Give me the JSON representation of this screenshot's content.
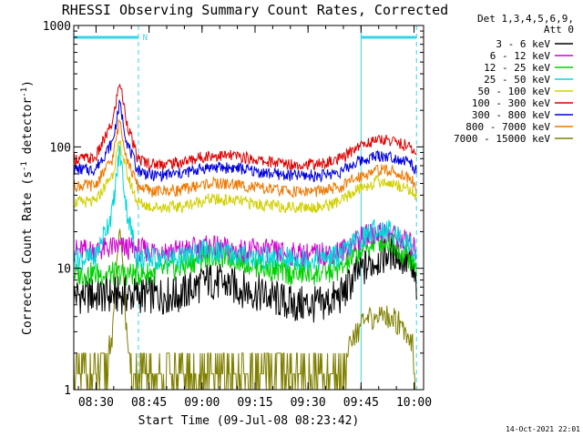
{
  "chart_data": {
    "type": "line",
    "title": "RHESSI Observing Summary Count Rates, Corrected",
    "xlabel": "Start Time (09-Jul-08 08:23:42)",
    "ylabel_main": "Corrected Count Rate (s",
    "ylabel_sup1": "-1",
    "ylabel_mid": " detector",
    "ylabel_sup2": "-1",
    "ylabel_end": ")",
    "yscale": "log",
    "ylim": [
      1,
      1000
    ],
    "x_unit": "minutes after 08:23:42",
    "xlim": [
      0,
      99
    ],
    "x_ticks": [
      {
        "value": 6.3,
        "label": "08:30"
      },
      {
        "value": 21.3,
        "label": "08:45"
      },
      {
        "value": 36.3,
        "label": "09:00"
      },
      {
        "value": 51.3,
        "label": "09:15"
      },
      {
        "value": 66.3,
        "label": "09:30"
      },
      {
        "value": 81.3,
        "label": "09:45"
      },
      {
        "value": 96.3,
        "label": "10:00"
      }
    ],
    "y_ticks": [
      {
        "value": 1,
        "label": "1"
      },
      {
        "value": 10,
        "label": "10"
      },
      {
        "value": 100,
        "label": "100"
      },
      {
        "value": 1000,
        "label": "1000"
      }
    ],
    "legend_header": [
      "Det 1,3,4,5,6,9,",
      "Att 0"
    ],
    "legend_position": "right",
    "night_lines": [
      0,
      18.3,
      81.3,
      97
    ],
    "night_bars": [
      {
        "from": 0,
        "to": 18.3
      },
      {
        "from": 81.3,
        "to": 97
      }
    ],
    "night_marker": {
      "label": "N",
      "x": 19.5
    },
    "series": [
      {
        "name": "3 - 6 keV",
        "color": "#000000",
        "x": [
          0,
          6,
          12,
          20,
          30,
          38,
          46,
          54,
          62,
          70,
          76,
          80,
          86,
          90,
          95,
          97
        ],
        "values": [
          6,
          6,
          6,
          6,
          6,
          8,
          7,
          6,
          5,
          5,
          6,
          9,
          12,
          14,
          11,
          7
        ]
      },
      {
        "name": "6 - 12 keV",
        "color": "#d000d0",
        "x": [
          0,
          6,
          12,
          20,
          30,
          38,
          46,
          54,
          62,
          70,
          76,
          80,
          86,
          90,
          95,
          97
        ],
        "values": [
          14,
          14,
          15,
          14,
          14,
          15,
          14,
          14,
          13,
          13,
          14,
          17,
          20,
          19,
          16,
          14
        ]
      },
      {
        "name": "12 - 25 keV",
        "color": "#00d000",
        "x": [
          0,
          6,
          12,
          20,
          30,
          38,
          46,
          54,
          62,
          70,
          76,
          80,
          86,
          90,
          95,
          97
        ],
        "values": [
          9,
          9,
          9,
          9,
          10,
          13,
          12,
          10,
          9,
          9,
          10,
          13,
          17,
          16,
          12,
          10
        ]
      },
      {
        "name": "25 - 50 keV",
        "color": "#00d8d8",
        "x": [
          0,
          6,
          11,
          13,
          15,
          18,
          22,
          30,
          38,
          46,
          54,
          62,
          70,
          76,
          80,
          86,
          90,
          95,
          97
        ],
        "values": [
          12,
          12,
          30,
          95,
          30,
          12,
          12,
          12,
          14,
          13,
          12,
          12,
          12,
          13,
          17,
          21,
          20,
          16,
          13
        ]
      },
      {
        "name": "50 - 100 keV",
        "color": "#d0d000",
        "x": [
          0,
          6,
          11,
          13,
          15,
          18,
          22,
          30,
          38,
          46,
          54,
          62,
          70,
          76,
          80,
          86,
          90,
          95,
          97
        ],
        "values": [
          35,
          35,
          60,
          110,
          60,
          35,
          32,
          32,
          37,
          36,
          33,
          32,
          32,
          36,
          44,
          52,
          50,
          45,
          38
        ]
      },
      {
        "name": "100 - 300 keV",
        "color": "#e00000",
        "x": [
          0,
          6,
          11,
          13,
          15,
          18,
          22,
          30,
          38,
          46,
          54,
          62,
          70,
          76,
          80,
          86,
          90,
          95,
          97
        ],
        "values": [
          80,
          80,
          160,
          350,
          160,
          80,
          72,
          74,
          85,
          84,
          76,
          72,
          72,
          80,
          100,
          115,
          113,
          100,
          85
        ]
      },
      {
        "name": "300 - 800 keV",
        "color": "#0000e0",
        "x": [
          0,
          6,
          11,
          13,
          15,
          18,
          22,
          30,
          38,
          46,
          54,
          62,
          70,
          76,
          80,
          86,
          90,
          95,
          97
        ],
        "values": [
          65,
          65,
          110,
          230,
          110,
          65,
          58,
          60,
          68,
          67,
          61,
          58,
          58,
          63,
          75,
          85,
          83,
          75,
          63
        ]
      },
      {
        "name": "800 - 7000 keV",
        "color": "#f07800",
        "x": [
          0,
          6,
          11,
          13,
          15,
          18,
          22,
          30,
          38,
          46,
          54,
          62,
          70,
          76,
          80,
          86,
          90,
          95,
          97
        ],
        "values": [
          48,
          48,
          80,
          170,
          80,
          48,
          43,
          44,
          50,
          49,
          45,
          43,
          43,
          47,
          56,
          65,
          63,
          56,
          48
        ]
      },
      {
        "name": "7000 - 15000 keV",
        "color": "#808000",
        "x": [
          0,
          6,
          11,
          12,
          13,
          14,
          15,
          17,
          18,
          25,
          35,
          45,
          55,
          65,
          72,
          75,
          77,
          80,
          84,
          88,
          92,
          95,
          97
        ],
        "values": [
          1.7,
          1.7,
          3,
          10,
          22,
          10,
          3,
          1.5,
          1.3,
          1.4,
          1.5,
          1.4,
          1.3,
          1.3,
          1.4,
          2,
          2.5,
          3.4,
          4.2,
          4.5,
          4,
          3,
          2.3
        ]
      }
    ]
  },
  "timestamp": "14-Oct-2021 22:01"
}
